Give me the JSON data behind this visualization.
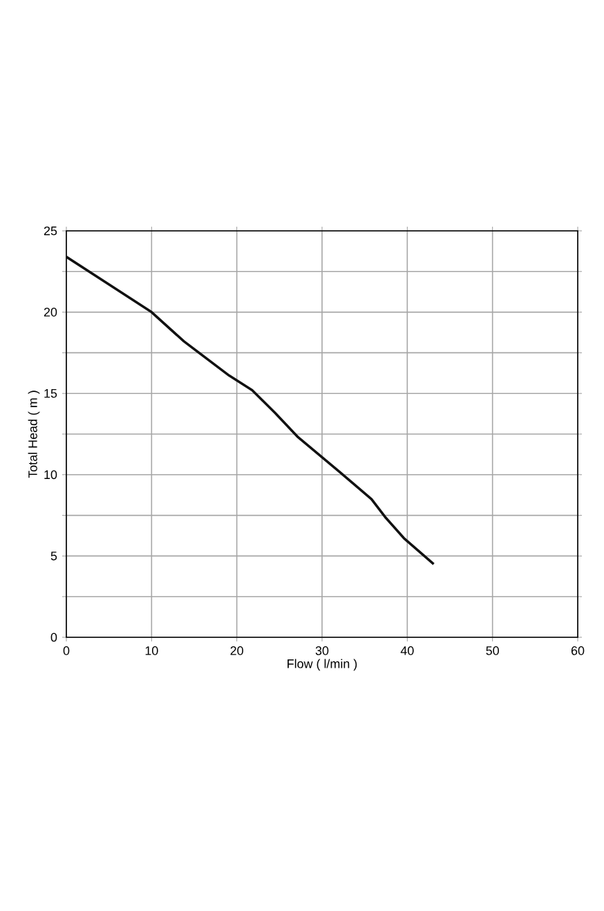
{
  "chart_data": {
    "type": "line",
    "xlabel": "Flow ( l/min )",
    "ylabel": "Total Head ( m )",
    "x": [
      0,
      5,
      10,
      13.8,
      19.1,
      21.8,
      24.5,
      27.2,
      32,
      35.8,
      37.4,
      39.6,
      43.1
    ],
    "series": [
      {
        "color": "#111111",
        "values": [
          23.4,
          21.7,
          20.0,
          18.2,
          16.1,
          15.2,
          13.8,
          12.3,
          10.2,
          8.5,
          7.4,
          6.1,
          4.5
        ]
      }
    ],
    "xlim": [
      0,
      60
    ],
    "xticks": [
      0,
      10,
      20,
      30,
      40,
      50,
      60
    ],
    "ylim": [
      0,
      25
    ],
    "yticks": [
      0,
      {
        "value": 2.5,
        "label": null
      },
      5,
      {
        "value": 7.5,
        "label": null
      },
      10,
      {
        "value": 12.5,
        "label": null
      },
      15,
      {
        "value": 17.5,
        "label": null
      },
      20,
      {
        "value": 22.5,
        "label": null
      },
      25
    ],
    "grid": true,
    "marker": "none",
    "line_style": "solid"
  }
}
